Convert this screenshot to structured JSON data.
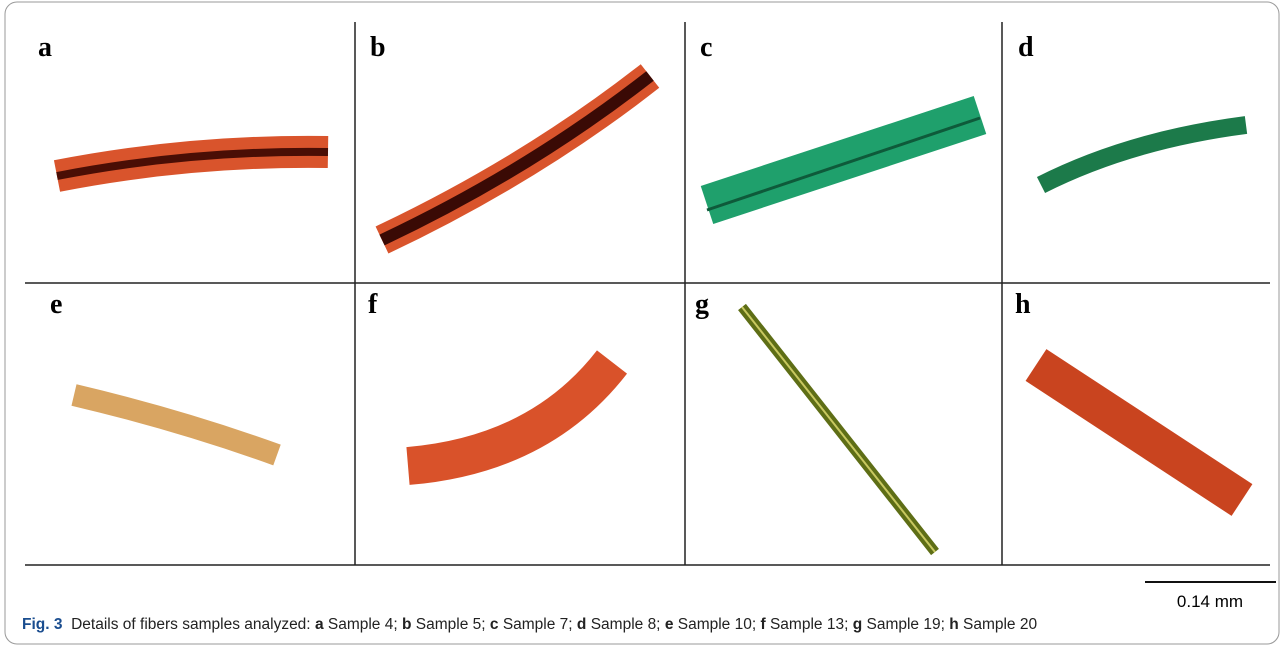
{
  "panels": [
    {
      "label": "a"
    },
    {
      "label": "b"
    },
    {
      "label": "c"
    },
    {
      "label": "d"
    },
    {
      "label": "e"
    },
    {
      "label": "f"
    },
    {
      "label": "g"
    },
    {
      "label": "h"
    }
  ],
  "scale_bar": "0.14 mm",
  "caption": {
    "figure": "Fig. 3",
    "intro": "Details of fibers samples analyzed:",
    "items": [
      {
        "key": "a",
        "text": "Sample 4;"
      },
      {
        "key": "b",
        "text": "Sample 5;"
      },
      {
        "key": "c",
        "text": "Sample 7;"
      },
      {
        "key": "d",
        "text": "Sample 8;"
      },
      {
        "key": "e",
        "text": "Sample 10;"
      },
      {
        "key": "f",
        "text": "Sample 13;"
      },
      {
        "key": "g",
        "text": "Sample 19;"
      },
      {
        "key": "h",
        "text": "Sample 20"
      }
    ]
  }
}
